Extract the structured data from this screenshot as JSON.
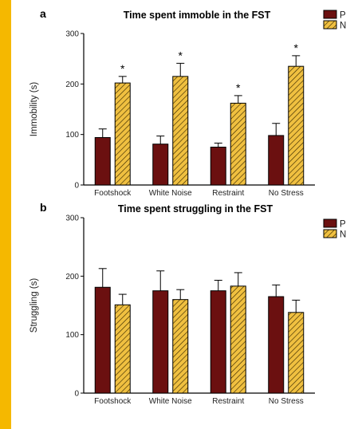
{
  "frame": {
    "border_color": "#f5b800"
  },
  "colors": {
    "bar_dark": "#6b1010",
    "bar_hatch": "#f0c040"
  },
  "chart_data": [
    {
      "type": "bar",
      "panel": "a",
      "title": "Time spent immoble in the FST",
      "ylabel": "Immobility (s)",
      "xlabel": "",
      "categories": [
        "Footshock",
        "White Noise",
        "Restraint",
        "No Stress"
      ],
      "ylim": [
        0,
        300
      ],
      "yticks": [
        0,
        100,
        200,
        300
      ],
      "legend_position": "top-right",
      "series": [
        {
          "name": "P",
          "values": [
            94,
            81,
            75,
            98
          ],
          "errors": [
            17,
            16,
            8,
            24
          ],
          "style": "dark"
        },
        {
          "name": "N",
          "values": [
            202,
            215,
            162,
            235
          ],
          "errors": [
            13,
            26,
            15,
            21
          ],
          "style": "hatch"
        }
      ],
      "annotations": [
        "*",
        "*",
        "*",
        "*"
      ]
    },
    {
      "type": "bar",
      "panel": "b",
      "title": "Time spent struggling in the FST",
      "ylabel": "Struggling (s)",
      "xlabel": "",
      "categories": [
        "Footshock",
        "White Noise",
        "Restraint",
        "No Stress"
      ],
      "ylim": [
        0,
        300
      ],
      "yticks": [
        0,
        100,
        200,
        300
      ],
      "legend_position": "top-right",
      "series": [
        {
          "name": "P",
          "values": [
            181,
            175,
            175,
            165
          ],
          "errors": [
            32,
            34,
            18,
            20
          ],
          "style": "dark"
        },
        {
          "name": "N",
          "values": [
            151,
            160,
            183,
            138
          ],
          "errors": [
            18,
            17,
            23,
            21
          ],
          "style": "hatch"
        }
      ],
      "annotations": []
    }
  ]
}
